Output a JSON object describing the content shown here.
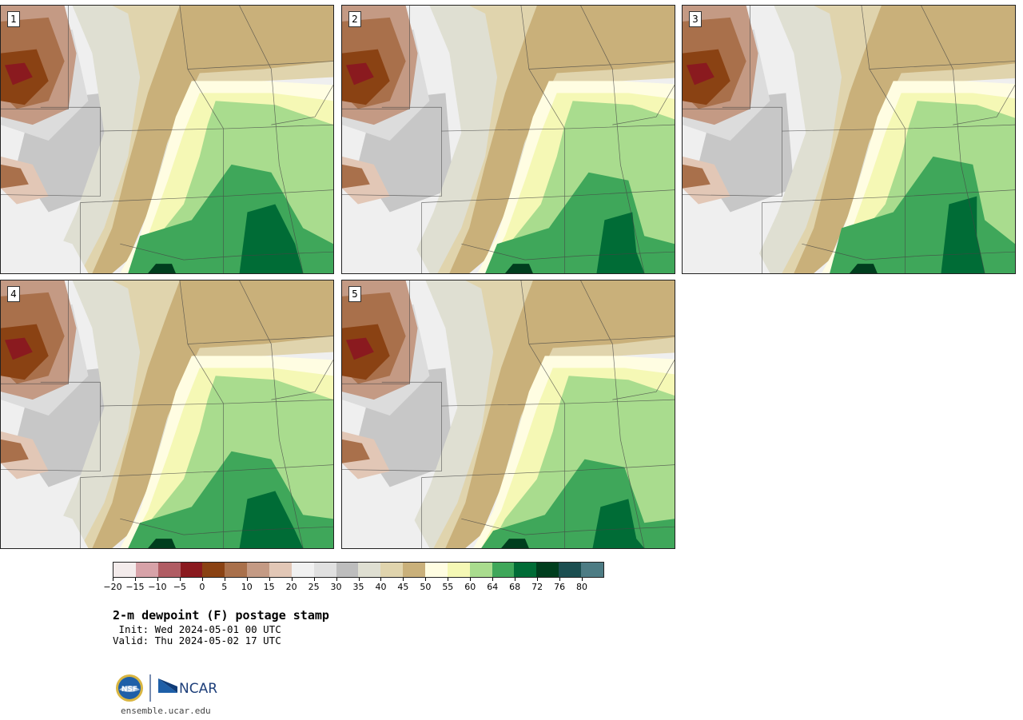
{
  "panels": [
    {
      "label": "1",
      "variant": 0
    },
    {
      "label": "2",
      "variant": 1
    },
    {
      "label": "3",
      "variant": 2
    },
    {
      "label": "4",
      "variant": 3
    },
    {
      "label": "5",
      "variant": 4
    }
  ],
  "colorbar": {
    "colors": [
      "#f3ebeb",
      "#d7a2a8",
      "#b05c63",
      "#8a1a1f",
      "#8a4213",
      "#a9704b",
      "#c49a84",
      "#e2c7b6",
      "#f1f1f1",
      "#e0e0e0",
      "#bdbdbd",
      "#dfdfd2",
      "#e0d4ad",
      "#c9b07a",
      "#fffde2",
      "#f5f8b5",
      "#a9dc8e",
      "#3fa75a",
      "#006c36",
      "#003e1e",
      "#1b4e50",
      "#4d7c84"
    ],
    "tick_labels": [
      "−20",
      "−15",
      "−10",
      "−5",
      "0",
      "5",
      "10",
      "15",
      "20",
      "25",
      "30",
      "35",
      "40",
      "45",
      "50",
      "55",
      "60",
      "64",
      "68",
      "72",
      "76",
      "80"
    ]
  },
  "title": "2-m dewpoint (F) postage stamp",
  "init": " Init: Wed 2024-05-01 00 UTC",
  "valid": "Valid: Thu 2024-05-02 17 UTC",
  "logos": {
    "nsf_text": "NSF",
    "ncar_text": "NCAR"
  },
  "site": "ensemble.ucar.edu"
}
